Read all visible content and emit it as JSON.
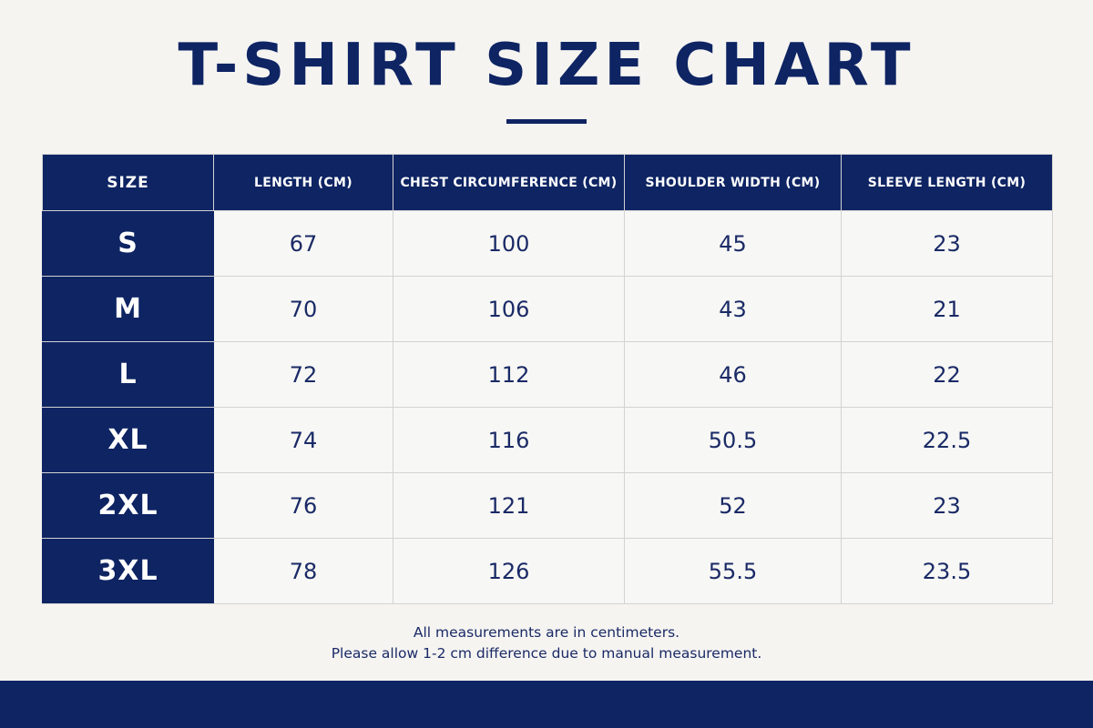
{
  "title": "T-SHIRT SIZE CHART",
  "table": {
    "headers": [
      "SIZE",
      "LENGTH (CM)",
      "CHEST CIRCUMFERENCE (CM)",
      "SHOULDER WIDTH (CM)",
      "SLEEVE LENGTH (CM)"
    ],
    "rows": [
      [
        "S",
        "67",
        "100",
        "45",
        "23"
      ],
      [
        "M",
        "70",
        "106",
        "43",
        "21"
      ],
      [
        "L",
        "72",
        "112",
        "46",
        "22"
      ],
      [
        "XL",
        "74",
        "116",
        "50.5",
        "22.5"
      ],
      [
        "2XL",
        "76",
        "121",
        "52",
        "23"
      ],
      [
        "3XL",
        "78",
        "126",
        "55.5",
        "23.5"
      ]
    ]
  },
  "notes": [
    "All measurements are in centimeters.",
    "Please allow 1-2 cm difference due to manual measurement."
  ],
  "colors": {
    "navy": "#0e2463",
    "background": "#f5f4f1",
    "grid": "#d3d3d3"
  }
}
